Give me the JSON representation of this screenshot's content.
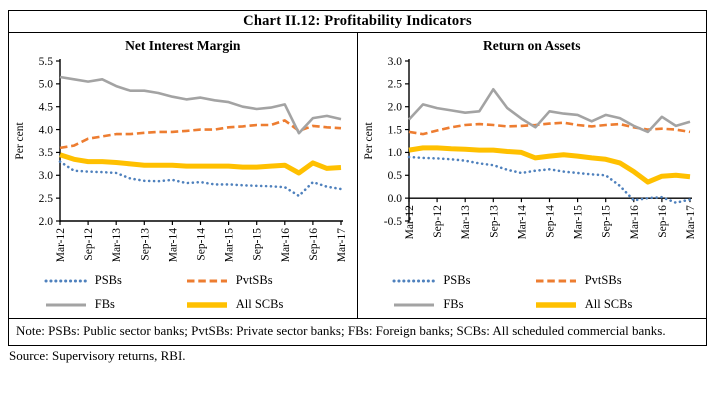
{
  "title": "Chart II.12: Profitability Indicators",
  "note": "Note: PSBs: Public sector banks; PvtSBs: Private sector banks; FBs: Foreign banks; SCBs: All scheduled commercial banks.",
  "source": "Source: Supervisory returns, RBI.",
  "colors": {
    "psbs_blue": "#4f81bd",
    "pvtsbs_orange": "#ed7d31",
    "fbs_gray": "#a3a3a3",
    "allscbs_yellow": "#ffc000",
    "axis_black": "#000000"
  },
  "chart_data": [
    {
      "type": "line",
      "title": "Net Interest Margin",
      "ylabel": "Per cent",
      "ylim": [
        2.0,
        5.5
      ],
      "xaxis_at": 2.0,
      "grid": false,
      "legend_position": "bottom",
      "ytick_labels": [
        "5.5",
        "5.0",
        "4.5",
        "4.0",
        "3.5",
        "3.0",
        "2.5",
        "2.0"
      ],
      "x_tick_labels": [
        "Mar-12",
        "Sep-12",
        "Mar-13",
        "Sep-13",
        "Mar-14",
        "Sep-14",
        "Mar-15",
        "Sep-15",
        "Mar-16",
        "Sep-16",
        "Mar-17"
      ],
      "points_per_label": 2,
      "series": [
        {
          "name": "PSBs",
          "style": "dotted",
          "color": "#4f81bd",
          "values": [
            3.3,
            3.1,
            3.08,
            3.07,
            3.05,
            2.93,
            2.88,
            2.87,
            2.9,
            2.83,
            2.85,
            2.8,
            2.8,
            2.78,
            2.77,
            2.76,
            2.74,
            2.55,
            2.85,
            2.75,
            2.7
          ]
        },
        {
          "name": "PvtSBs",
          "style": "dashed",
          "color": "#ed7d31",
          "values": [
            3.6,
            3.65,
            3.8,
            3.85,
            3.9,
            3.9,
            3.93,
            3.95,
            3.95,
            3.97,
            4.0,
            4.0,
            4.05,
            4.07,
            4.1,
            4.1,
            4.2,
            3.97,
            4.08,
            4.05,
            4.03
          ]
        },
        {
          "name": "FBs",
          "style": "solid",
          "color": "#a3a3a3",
          "values": [
            5.15,
            5.1,
            5.05,
            5.1,
            4.95,
            4.85,
            4.85,
            4.8,
            4.72,
            4.66,
            4.7,
            4.64,
            4.6,
            4.5,
            4.45,
            4.48,
            4.55,
            3.92,
            4.25,
            4.3,
            4.23
          ]
        },
        {
          "name": "All SCBs",
          "style": "solid-thick",
          "color": "#ffc000",
          "values": [
            3.45,
            3.35,
            3.3,
            3.3,
            3.28,
            3.25,
            3.22,
            3.22,
            3.22,
            3.2,
            3.2,
            3.2,
            3.2,
            3.18,
            3.18,
            3.2,
            3.22,
            3.05,
            3.27,
            3.15,
            3.17
          ]
        }
      ]
    },
    {
      "type": "line",
      "title": "Return on Assets",
      "ylabel": "Per cent",
      "ylim": [
        -0.5,
        3.0
      ],
      "xaxis_at": 0.0,
      "grid": false,
      "legend_position": "bottom",
      "ytick_labels": [
        "3.0",
        "2.5",
        "2.0",
        "1.5",
        "1.0",
        "0.5",
        "0.0",
        "-0.5"
      ],
      "x_tick_labels": [
        "Mar-12",
        "Sep-12",
        "Mar-13",
        "Sep-13",
        "Mar-14",
        "Sep-14",
        "Mar-15",
        "Sep-15",
        "Mar-16",
        "Sep-16",
        "Mar-17"
      ],
      "points_per_label": 2,
      "series": [
        {
          "name": "PSBs",
          "style": "dotted",
          "color": "#4f81bd",
          "values": [
            0.9,
            0.88,
            0.87,
            0.85,
            0.82,
            0.76,
            0.72,
            0.62,
            0.55,
            0.6,
            0.63,
            0.58,
            0.55,
            0.52,
            0.5,
            0.27,
            -0.05,
            0.0,
            0.02,
            -0.1,
            -0.03
          ]
        },
        {
          "name": "PvtSBs",
          "style": "dashed",
          "color": "#ed7d31",
          "values": [
            1.45,
            1.4,
            1.48,
            1.55,
            1.6,
            1.62,
            1.6,
            1.57,
            1.58,
            1.6,
            1.63,
            1.65,
            1.6,
            1.57,
            1.6,
            1.62,
            1.55,
            1.5,
            1.52,
            1.5,
            1.45
          ]
        },
        {
          "name": "FBs",
          "style": "solid",
          "color": "#a3a3a3",
          "values": [
            1.72,
            2.05,
            1.97,
            1.92,
            1.87,
            1.9,
            2.38,
            1.97,
            1.74,
            1.55,
            1.9,
            1.85,
            1.82,
            1.68,
            1.82,
            1.75,
            1.58,
            1.45,
            1.78,
            1.58,
            1.67
          ]
        },
        {
          "name": "All SCBs",
          "style": "solid-thick",
          "color": "#ffc000",
          "values": [
            1.05,
            1.1,
            1.1,
            1.08,
            1.07,
            1.05,
            1.05,
            1.02,
            1.0,
            0.88,
            0.92,
            0.95,
            0.92,
            0.88,
            0.85,
            0.77,
            0.58,
            0.35,
            0.48,
            0.5,
            0.47
          ]
        }
      ]
    }
  ]
}
